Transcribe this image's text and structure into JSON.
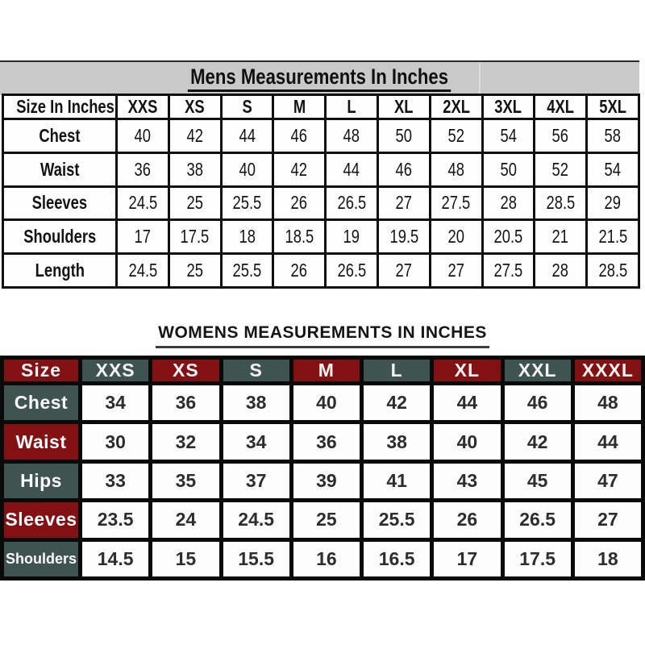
{
  "colors": {
    "band_gray": "#c9c9c9",
    "grid_black": "#101010",
    "maroon": "#831114",
    "slate": "#3f5451",
    "cell_white": "#fdfdfd",
    "text_dark": "#2d2d2d"
  },
  "mens": {
    "title": "Mens Measurements In Inches",
    "columns": [
      "Size In Inches",
      "XXS",
      "XS",
      "S",
      "M",
      "L",
      "XL",
      "2XL",
      "3XL",
      "4XL",
      "5XL"
    ],
    "rows": [
      {
        "label": "Chest",
        "values": [
          "40",
          "42",
          "44",
          "46",
          "48",
          "50",
          "52",
          "54",
          "56",
          "58"
        ]
      },
      {
        "label": "Waist",
        "values": [
          "36",
          "38",
          "40",
          "42",
          "44",
          "46",
          "48",
          "50",
          "52",
          "54"
        ]
      },
      {
        "label": "Sleeves",
        "values": [
          "24.5",
          "25",
          "25.5",
          "26",
          "26.5",
          "27",
          "27.5",
          "28",
          "28.5",
          "29"
        ]
      },
      {
        "label": "Shoulders",
        "values": [
          "17",
          "17.5",
          "18",
          "18.5",
          "19",
          "19.5",
          "20",
          "20.5",
          "21",
          "21.5"
        ]
      },
      {
        "label": "Length",
        "values": [
          "24.5",
          "25",
          "25.5",
          "26",
          "26.5",
          "27",
          "27",
          "27.5",
          "28",
          "28.5"
        ]
      }
    ]
  },
  "womens": {
    "title": "WOMENS MEASUREMENTS IN INCHES",
    "columns": [
      "Size",
      "XXS",
      "XS",
      "S",
      "M",
      "L",
      "XL",
      "XXL",
      "XXXL"
    ],
    "rows": [
      {
        "label": "Chest",
        "values": [
          "34",
          "36",
          "38",
          "40",
          "42",
          "44",
          "46",
          "48"
        ]
      },
      {
        "label": "Waist",
        "values": [
          "30",
          "32",
          "34",
          "36",
          "38",
          "40",
          "42",
          "44"
        ]
      },
      {
        "label": "Hips",
        "values": [
          "33",
          "35",
          "37",
          "39",
          "41",
          "43",
          "45",
          "47"
        ]
      },
      {
        "label": "Sleeves",
        "values": [
          "23.5",
          "24",
          "24.5",
          "25",
          "25.5",
          "26",
          "26.5",
          "27"
        ]
      },
      {
        "label": "Shoulders",
        "values": [
          "14.5",
          "15",
          "15.5",
          "16",
          "16.5",
          "17",
          "17.5",
          "18"
        ]
      }
    ]
  }
}
